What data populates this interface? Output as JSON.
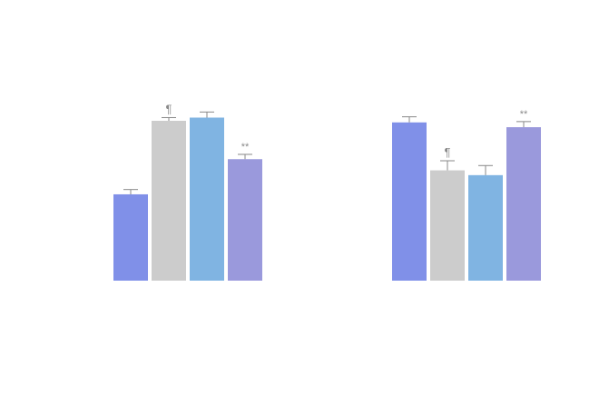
{
  "chart_data": [
    {
      "type": "bar",
      "panel": "left",
      "categories": [
        "",
        "",
        "",
        ""
      ],
      "values": [
        0.54,
        1.0,
        1.02,
        0.76
      ],
      "errors": [
        0.03,
        0.02,
        0.035,
        0.03
      ],
      "annotations": [
        "",
        "¶",
        "",
        "**"
      ],
      "colors": [
        "#8090e8",
        "#cccccc",
        "#80b4e2",
        "#9a99dc"
      ],
      "title": "",
      "xlabel": "",
      "ylabel": "",
      "ylim": [
        0,
        1.25
      ],
      "grid": false
    },
    {
      "type": "bar",
      "panel": "right",
      "categories": [
        "",
        "",
        "",
        ""
      ],
      "values": [
        0.99,
        0.69,
        0.66,
        0.96
      ],
      "errors": [
        0.035,
        0.06,
        0.06,
        0.035
      ],
      "annotations": [
        "",
        "¶",
        "",
        "**"
      ],
      "colors": [
        "#8090e8",
        "#cccccc",
        "#80b4e2",
        "#9a99dc"
      ],
      "title": "",
      "xlabel": "",
      "ylabel": "",
      "ylim": [
        0,
        1.25
      ],
      "grid": false
    }
  ]
}
